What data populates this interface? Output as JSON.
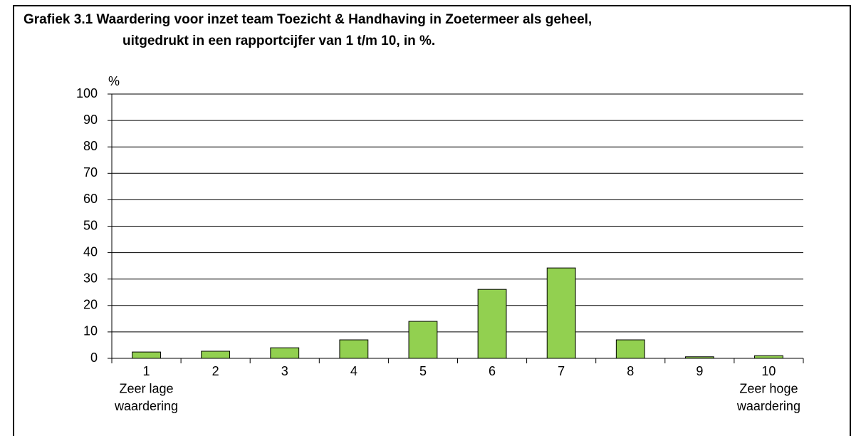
{
  "chart_data": {
    "type": "bar",
    "title": [
      "Grafiek 3.1  Waardering voor inzet team Toezicht & Handhaving in Zoetermeer als geheel,",
      "uitgedrukt in een rapportcijfer van 1 t/m 10, in  %."
    ],
    "y_label": "%",
    "categories": [
      [
        "1",
        "Zeer lage",
        "waardering"
      ],
      [
        "2"
      ],
      [
        "3"
      ],
      [
        "4"
      ],
      [
        "5"
      ],
      [
        "6"
      ],
      [
        "7"
      ],
      [
        "8"
      ],
      [
        "9"
      ],
      [
        "10",
        "Zeer hoge",
        "waardering"
      ]
    ],
    "values": [
      2.4,
      2.7,
      4,
      7,
      14,
      26.1,
      34.2,
      7,
      0.6,
      1
    ],
    "color": "#92d050",
    "ylim": [
      0,
      100
    ],
    "yticks": [
      0,
      10,
      20,
      30,
      40,
      50,
      60,
      70,
      80,
      90,
      100
    ],
    "grid": true
  }
}
